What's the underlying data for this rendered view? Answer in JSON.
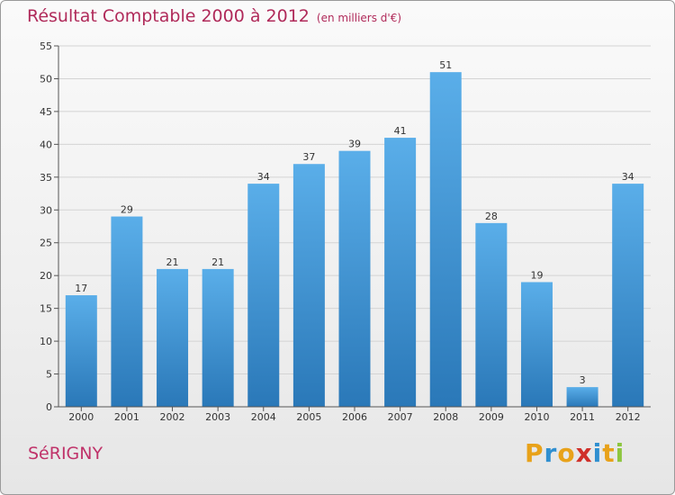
{
  "header": {
    "title": "Résultat Comptable 2000 à 2012",
    "unit": "(en milliers d'€)"
  },
  "footer": {
    "city": "SéRIGNY",
    "logo": [
      "P",
      "r",
      "o",
      "x",
      "i",
      "t",
      "i"
    ]
  },
  "colors": {
    "title": "#b02a5a",
    "bar_light": "#5aaee9",
    "bar_dark": "#2a78b8",
    "logo": [
      "#e8a21a",
      "#2f8fd0",
      "#e8a21a",
      "#d0302a",
      "#2f8fd0",
      "#e8a21a",
      "#8dc63f"
    ]
  },
  "chart_data": {
    "type": "bar",
    "title": "Résultat Comptable 2000 à 2012",
    "unit": "(en milliers d'€)",
    "xlabel": "",
    "ylabel": "",
    "categories": [
      "2000",
      "2001",
      "2002",
      "2003",
      "2004",
      "2005",
      "2006",
      "2007",
      "2008",
      "2009",
      "2010",
      "2011",
      "2012"
    ],
    "values": [
      17,
      29,
      21,
      21,
      34,
      37,
      39,
      41,
      51,
      28,
      19,
      3,
      34
    ],
    "ylim": [
      0,
      55
    ],
    "yticks": [
      0,
      5,
      10,
      15,
      20,
      25,
      30,
      35,
      40,
      45,
      50,
      55
    ],
    "grid": true
  }
}
